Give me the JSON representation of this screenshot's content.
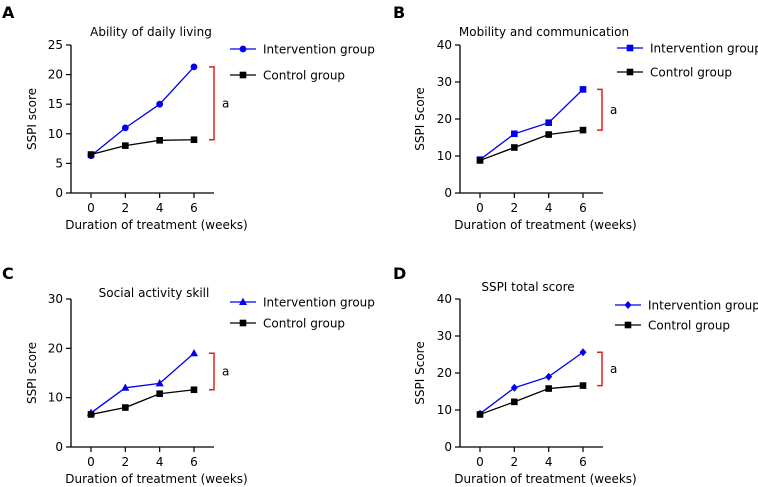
{
  "colors": {
    "intervention": "#0000ee",
    "control": "#000000",
    "bracket": "#e0201b"
  },
  "chart_data": [
    {
      "type": "line",
      "panel_label": "A",
      "title": "Ability of daily living",
      "xlabel": "Duration of treatment (weeks)",
      "ylabel": "SSPI score",
      "x": [
        0,
        2,
        4,
        6
      ],
      "xticks": [
        "0",
        "2",
        "4",
        "6"
      ],
      "ylim": [
        0,
        25
      ],
      "yticks": [
        "0",
        "5",
        "10",
        "15",
        "20",
        "25"
      ],
      "marker": "circle",
      "series": [
        {
          "name": "Intervention group",
          "values": [
            6.3,
            11.0,
            15.0,
            21.3
          ]
        },
        {
          "name": "Control group",
          "values": [
            6.5,
            8.0,
            8.9,
            9.0
          ]
        }
      ],
      "annotation": "a"
    },
    {
      "type": "line",
      "panel_label": "B",
      "title": "Mobility and communication",
      "xlabel": "Duration of treatment (weeks)",
      "ylabel": "SSPI Score",
      "x": [
        0,
        2,
        4,
        6
      ],
      "xticks": [
        "0",
        "2",
        "4",
        "6"
      ],
      "ylim": [
        0,
        40
      ],
      "yticks": [
        "0",
        "10",
        "20",
        "30",
        "40"
      ],
      "marker": "square",
      "series": [
        {
          "name": "Intervention group",
          "values": [
            9.0,
            16.0,
            19.0,
            28.0
          ]
        },
        {
          "name": "Control group",
          "values": [
            8.8,
            12.3,
            15.8,
            17.0
          ]
        }
      ],
      "annotation": "a"
    },
    {
      "type": "line",
      "panel_label": "C",
      "title": "Social activity skill",
      "xlabel": "Duration of treatment (weeks)",
      "ylabel": "SSPI score",
      "x": [
        0,
        2,
        4,
        6
      ],
      "xticks": [
        "0",
        "2",
        "4",
        "6"
      ],
      "ylim": [
        0,
        30
      ],
      "yticks": [
        "0",
        "10",
        "20",
        "30"
      ],
      "marker": "triangle",
      "series": [
        {
          "name": "Intervention group",
          "values": [
            6.9,
            12.0,
            12.9,
            19.0
          ]
        },
        {
          "name": "Control group",
          "values": [
            6.6,
            8.0,
            10.8,
            11.6
          ]
        }
      ],
      "annotation": "a"
    },
    {
      "type": "line",
      "panel_label": "D",
      "title": "SSPI total score",
      "xlabel": "Duration of treatment (weeks)",
      "ylabel": "SSPI Score",
      "x": [
        0,
        2,
        4,
        6
      ],
      "xticks": [
        "0",
        "2",
        "4",
        "6"
      ],
      "ylim": [
        0,
        40
      ],
      "yticks": [
        "0",
        "10",
        "20",
        "30",
        "40"
      ],
      "marker": "diamond",
      "series": [
        {
          "name": "Intervention group",
          "values": [
            9.0,
            16.0,
            19.0,
            25.6
          ]
        },
        {
          "name": "Control group",
          "values": [
            8.8,
            12.2,
            15.8,
            16.6
          ]
        }
      ],
      "annotation": "a"
    }
  ]
}
